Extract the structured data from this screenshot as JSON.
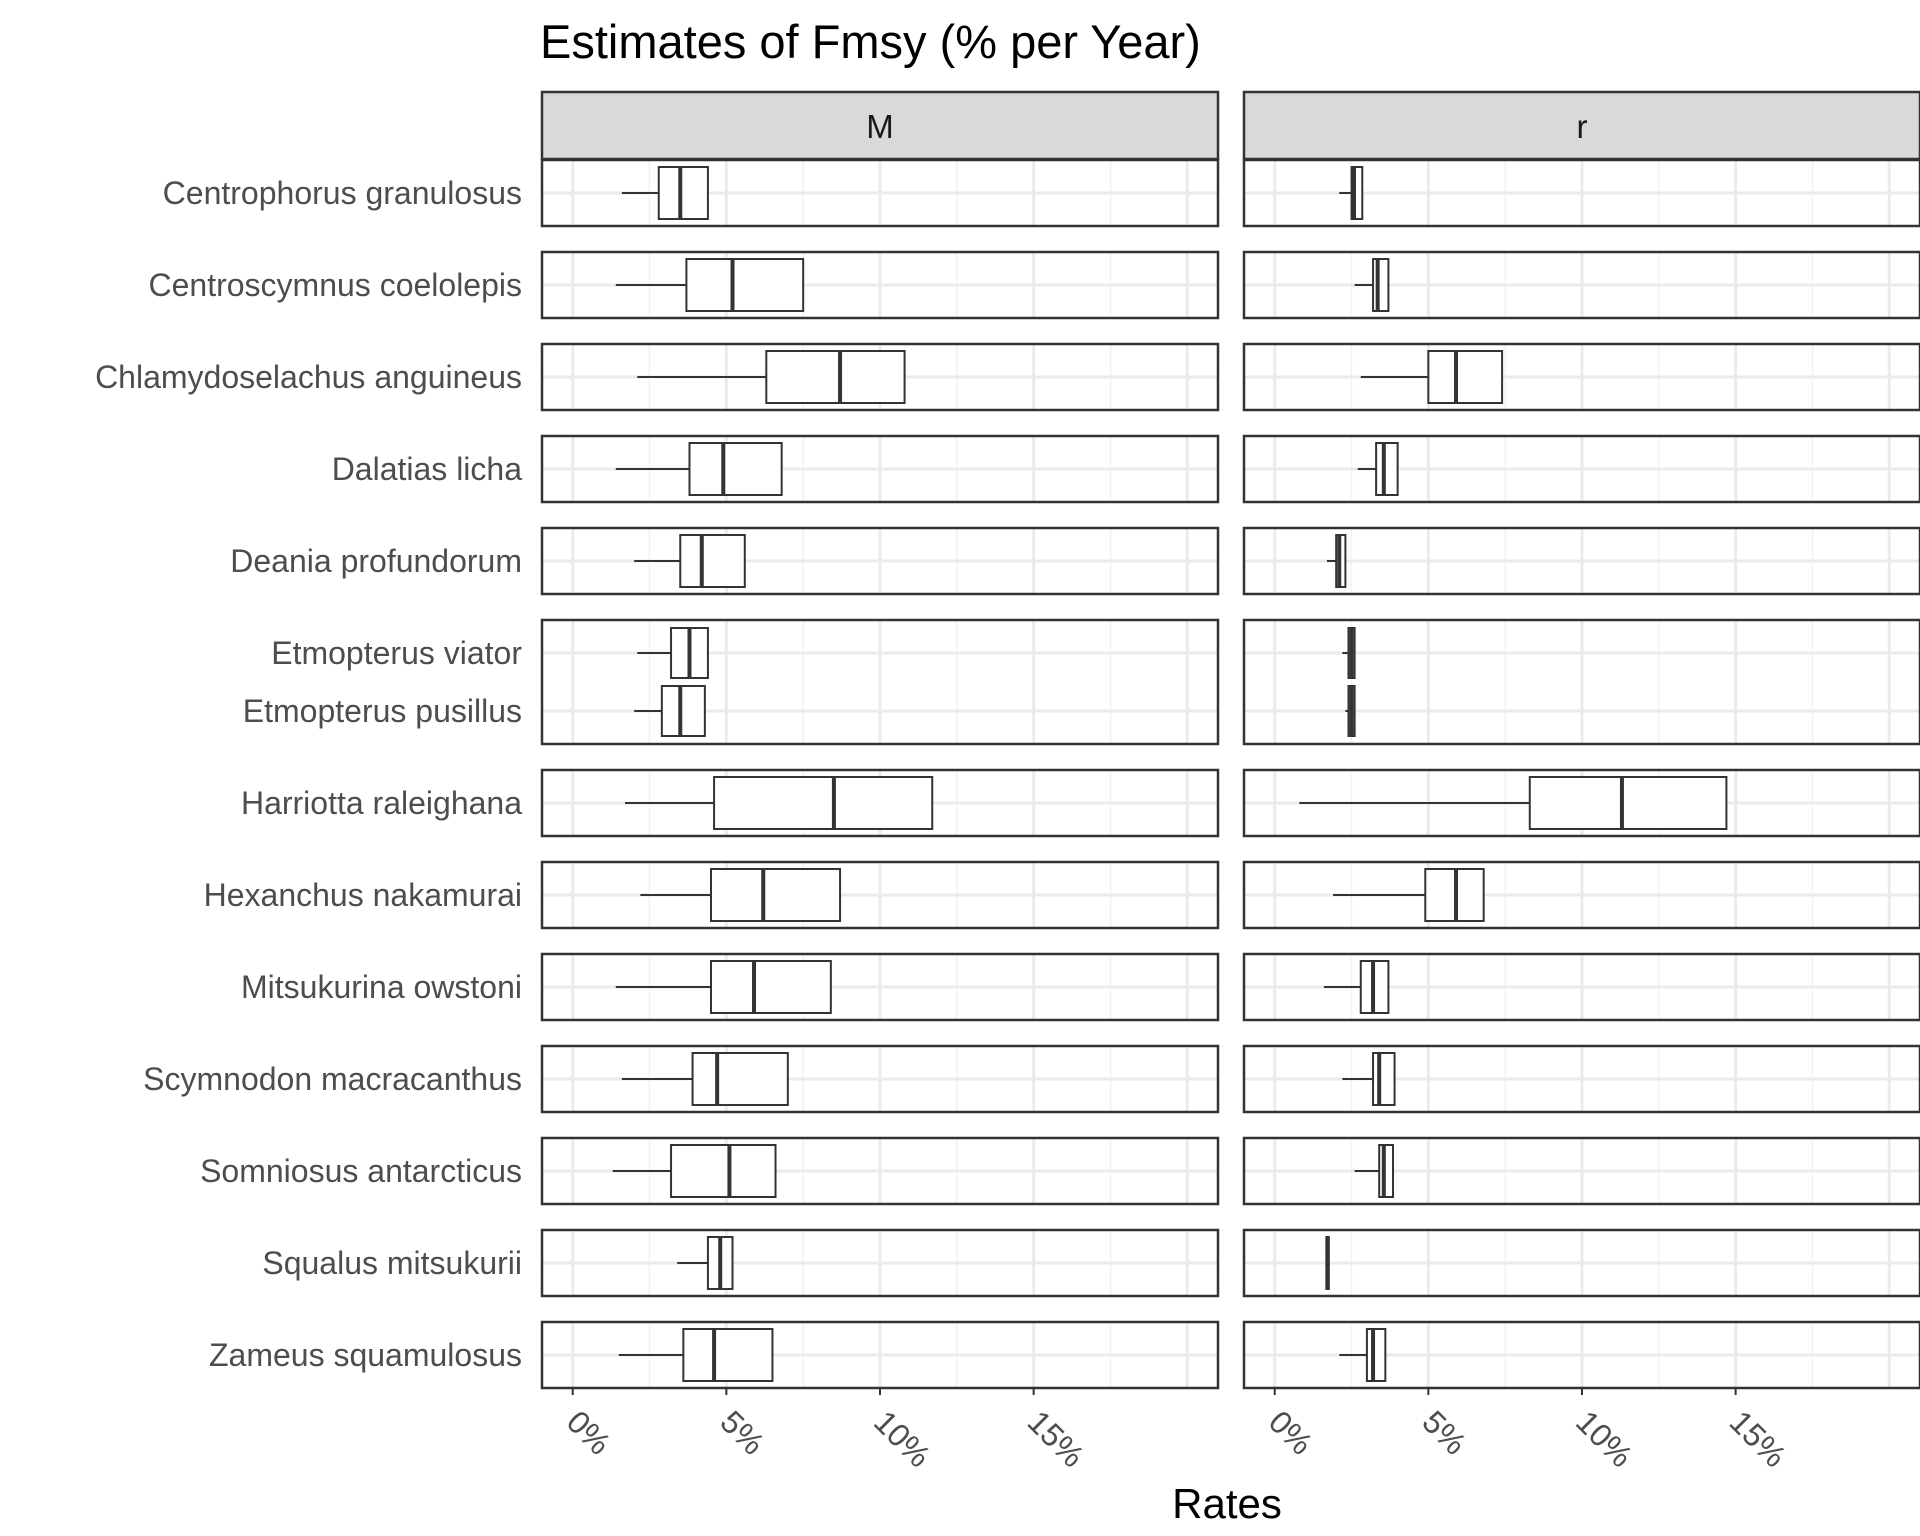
{
  "chart_data": {
    "type": "boxplot",
    "title": "Estimates of Fmsy (% per Year)",
    "xlabel": "Rates",
    "ylabel": "",
    "facets": [
      "M",
      "r"
    ],
    "x_range": [
      -0.01,
      0.21
    ],
    "x_ticks": [
      0,
      0.05,
      0.1,
      0.15
    ],
    "x_tick_labels": [
      "0%",
      "5%",
      "10%",
      "15%"
    ],
    "grid": true,
    "categories": [
      "Centrophorus granulosus",
      "Centroscymnus coelolepis",
      "Chlamydoselachus anguineus",
      "Dalatias licha",
      "Deania profundorum",
      "Etmopterus viator",
      "Etmopterus pusillus",
      "Harriotta raleighana",
      "Hexanchus nakamurai",
      "Mitsukurina owstoni",
      "Scymnodon macracanthus",
      "Somniosus antarcticus",
      "Squalus mitsukurii",
      "Zameus squamulosus"
    ],
    "groups": [
      [
        "Centrophorus granulosus"
      ],
      [
        "Centroscymnus coelolepis"
      ],
      [
        "Chlamydoselachus anguineus"
      ],
      [
        "Dalatias licha"
      ],
      [
        "Deania profundorum"
      ],
      [
        "Etmopterus viator",
        "Etmopterus pusillus"
      ],
      [
        "Harriotta raleighana"
      ],
      [
        "Hexanchus nakamurai"
      ],
      [
        "Mitsukurina owstoni"
      ],
      [
        "Scymnodon macracanthus"
      ],
      [
        "Somniosus antarcticus"
      ],
      [
        "Squalus mitsukurii"
      ],
      [
        "Zameus squamulosus"
      ]
    ],
    "series": [
      {
        "facet": "M",
        "boxes": [
          {
            "category": "Centrophorus granulosus",
            "min": 0.016,
            "q1": 0.028,
            "median": 0.035,
            "q3": 0.044,
            "max": 0.044
          },
          {
            "category": "Centroscymnus coelolepis",
            "min": 0.014,
            "q1": 0.037,
            "median": 0.052,
            "q3": 0.075,
            "max": 0.075
          },
          {
            "category": "Chlamydoselachus anguineus",
            "min": 0.021,
            "q1": 0.063,
            "median": 0.087,
            "q3": 0.108,
            "max": 0.108
          },
          {
            "category": "Dalatias licha",
            "min": 0.014,
            "q1": 0.038,
            "median": 0.049,
            "q3": 0.068,
            "max": 0.068
          },
          {
            "category": "Deania profundorum",
            "min": 0.02,
            "q1": 0.035,
            "median": 0.042,
            "q3": 0.056,
            "max": 0.056
          },
          {
            "category": "Etmopterus viator",
            "min": 0.021,
            "q1": 0.032,
            "median": 0.038,
            "q3": 0.044,
            "max": 0.044
          },
          {
            "category": "Etmopterus pusillus",
            "min": 0.02,
            "q1": 0.029,
            "median": 0.035,
            "q3": 0.043,
            "max": 0.043
          },
          {
            "category": "Harriotta raleighana",
            "min": 0.017,
            "q1": 0.046,
            "median": 0.085,
            "q3": 0.117,
            "max": 0.117
          },
          {
            "category": "Hexanchus nakamurai",
            "min": 0.022,
            "q1": 0.045,
            "median": 0.062,
            "q3": 0.087,
            "max": 0.087
          },
          {
            "category": "Mitsukurina owstoni",
            "min": 0.014,
            "q1": 0.045,
            "median": 0.059,
            "q3": 0.084,
            "max": 0.084
          },
          {
            "category": "Scymnodon macracanthus",
            "min": 0.016,
            "q1": 0.039,
            "median": 0.047,
            "q3": 0.07,
            "max": 0.07
          },
          {
            "category": "Somniosus antarcticus",
            "min": 0.013,
            "q1": 0.032,
            "median": 0.051,
            "q3": 0.066,
            "max": 0.066
          },
          {
            "category": "Squalus mitsukurii",
            "min": 0.034,
            "q1": 0.044,
            "median": 0.048,
            "q3": 0.052,
            "max": 0.052
          },
          {
            "category": "Zameus squamulosus",
            "min": 0.015,
            "q1": 0.036,
            "median": 0.046,
            "q3": 0.065,
            "max": 0.065
          }
        ]
      },
      {
        "facet": "r",
        "boxes": [
          {
            "category": "Centrophorus granulosus",
            "min": 0.021,
            "q1": 0.025,
            "median": 0.0258,
            "q3": 0.0285,
            "max": 0.0285
          },
          {
            "category": "Centroscymnus coelolepis",
            "min": 0.026,
            "q1": 0.032,
            "median": 0.0335,
            "q3": 0.037,
            "max": 0.037
          },
          {
            "category": "Chlamydoselachus anguineus",
            "min": 0.028,
            "q1": 0.05,
            "median": 0.059,
            "q3": 0.074,
            "max": 0.074
          },
          {
            "category": "Dalatias licha",
            "min": 0.027,
            "q1": 0.033,
            "median": 0.0355,
            "q3": 0.04,
            "max": 0.04
          },
          {
            "category": "Deania profundorum",
            "min": 0.017,
            "q1": 0.02,
            "median": 0.021,
            "q3": 0.023,
            "max": 0.023
          },
          {
            "category": "Etmopterus viator",
            "min": 0.022,
            "q1": 0.024,
            "median": 0.025,
            "q3": 0.026,
            "max": 0.026
          },
          {
            "category": "Etmopterus pusillus",
            "min": 0.023,
            "q1": 0.024,
            "median": 0.025,
            "q3": 0.026,
            "max": 0.026
          },
          {
            "category": "Harriotta raleighana",
            "min": 0.008,
            "q1": 0.083,
            "median": 0.113,
            "q3": 0.147,
            "max": 0.147
          },
          {
            "category": "Hexanchus nakamurai",
            "min": 0.019,
            "q1": 0.049,
            "median": 0.059,
            "q3": 0.068,
            "max": 0.068
          },
          {
            "category": "Mitsukurina owstoni",
            "min": 0.016,
            "q1": 0.028,
            "median": 0.032,
            "q3": 0.037,
            "max": 0.037
          },
          {
            "category": "Scymnodon macracanthus",
            "min": 0.022,
            "q1": 0.032,
            "median": 0.034,
            "q3": 0.039,
            "max": 0.039
          },
          {
            "category": "Somniosus antarcticus",
            "min": 0.026,
            "q1": 0.034,
            "median": 0.0355,
            "q3": 0.0385,
            "max": 0.0385
          },
          {
            "category": "Squalus mitsukurii",
            "min": 0.0168,
            "q1": 0.0168,
            "median": 0.0172,
            "q3": 0.0176,
            "max": 0.0176
          },
          {
            "category": "Zameus squamulosus",
            "min": 0.021,
            "q1": 0.03,
            "median": 0.032,
            "q3": 0.036,
            "max": 0.036
          }
        ]
      }
    ]
  }
}
